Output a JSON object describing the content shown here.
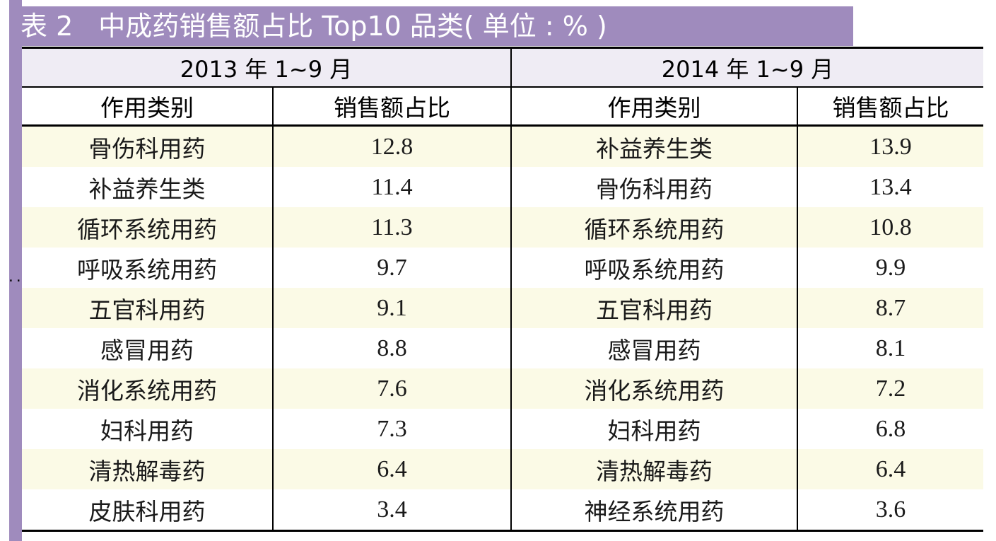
{
  "title": {
    "number": "表 2",
    "text": "中成药销售额占比 Top10 品类( 单位 : % )"
  },
  "periods": [
    "2013 年 1~9 月",
    "2014 年 1~9 月"
  ],
  "columns": {
    "category": "作用类别",
    "share": "销售额占比"
  },
  "rows": [
    {
      "cat2013": "骨伤科用药",
      "val2013": "12.8",
      "cat2014": "补益养生类",
      "val2014": "13.9"
    },
    {
      "cat2013": "补益养生类",
      "val2013": "11.4",
      "cat2014": "骨伤科用药",
      "val2014": "13.4"
    },
    {
      "cat2013": "循环系统用药",
      "val2013": "11.3",
      "cat2014": "循环系统用药",
      "val2014": "10.8"
    },
    {
      "cat2013": "呼吸系统用药",
      "val2013": "9.7",
      "cat2014": "呼吸系统用药",
      "val2014": "9.9"
    },
    {
      "cat2013": "五官科用药",
      "val2013": "9.1",
      "cat2014": "五官科用药",
      "val2014": "8.7"
    },
    {
      "cat2013": "感冒用药",
      "val2013": "8.8",
      "cat2014": "感冒用药",
      "val2014": "8.1"
    },
    {
      "cat2013": "消化系统用药",
      "val2013": "7.6",
      "cat2014": "消化系统用药",
      "val2014": "7.2"
    },
    {
      "cat2013": "妇科用药",
      "val2013": "7.3",
      "cat2014": "妇科用药",
      "val2014": "6.8"
    },
    {
      "cat2013": "清热解毒药",
      "val2013": "6.4",
      "cat2014": "清热解毒药",
      "val2014": "6.4"
    },
    {
      "cat2013": "皮肤科用药",
      "val2013": "3.4",
      "cat2014": "神经系统用药",
      "val2014": "3.6"
    }
  ],
  "marker": "··",
  "colors": {
    "accent_purple": "#9f8bbd",
    "row_highlight": "#fbfae6",
    "header_bg": "#efecf4"
  }
}
